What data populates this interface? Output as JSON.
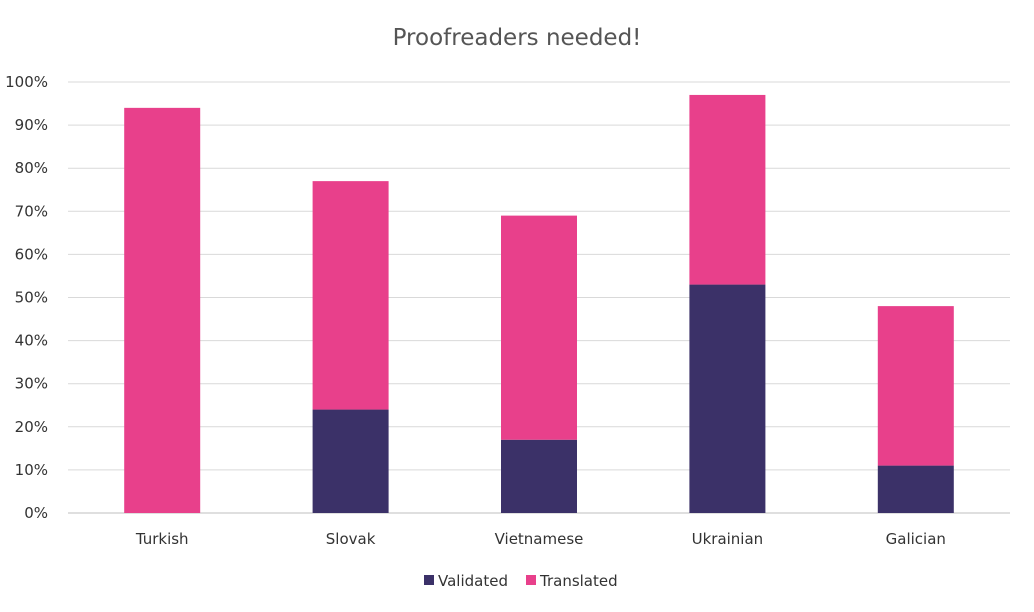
{
  "chart_data": {
    "type": "bar",
    "stacked": true,
    "title": "Proofreaders needed!",
    "xlabel": "",
    "ylabel": "",
    "categories": [
      "Turkish",
      "Slovak",
      "Vietnamese",
      "Ukrainian",
      "Galician"
    ],
    "series": [
      {
        "name": "Validated",
        "color": "#3b3168",
        "values": [
          0,
          24,
          17,
          53,
          11
        ]
      },
      {
        "name": "Translated",
        "color": "#e8408b",
        "values": [
          94,
          53,
          52,
          44,
          37
        ]
      }
    ],
    "ylim": [
      0,
      100
    ],
    "yticks": [
      "0%",
      "10%",
      "20%",
      "30%",
      "40%",
      "50%",
      "60%",
      "70%",
      "80%",
      "90%",
      "100%"
    ],
    "grid": true,
    "legend_position": "bottom"
  }
}
